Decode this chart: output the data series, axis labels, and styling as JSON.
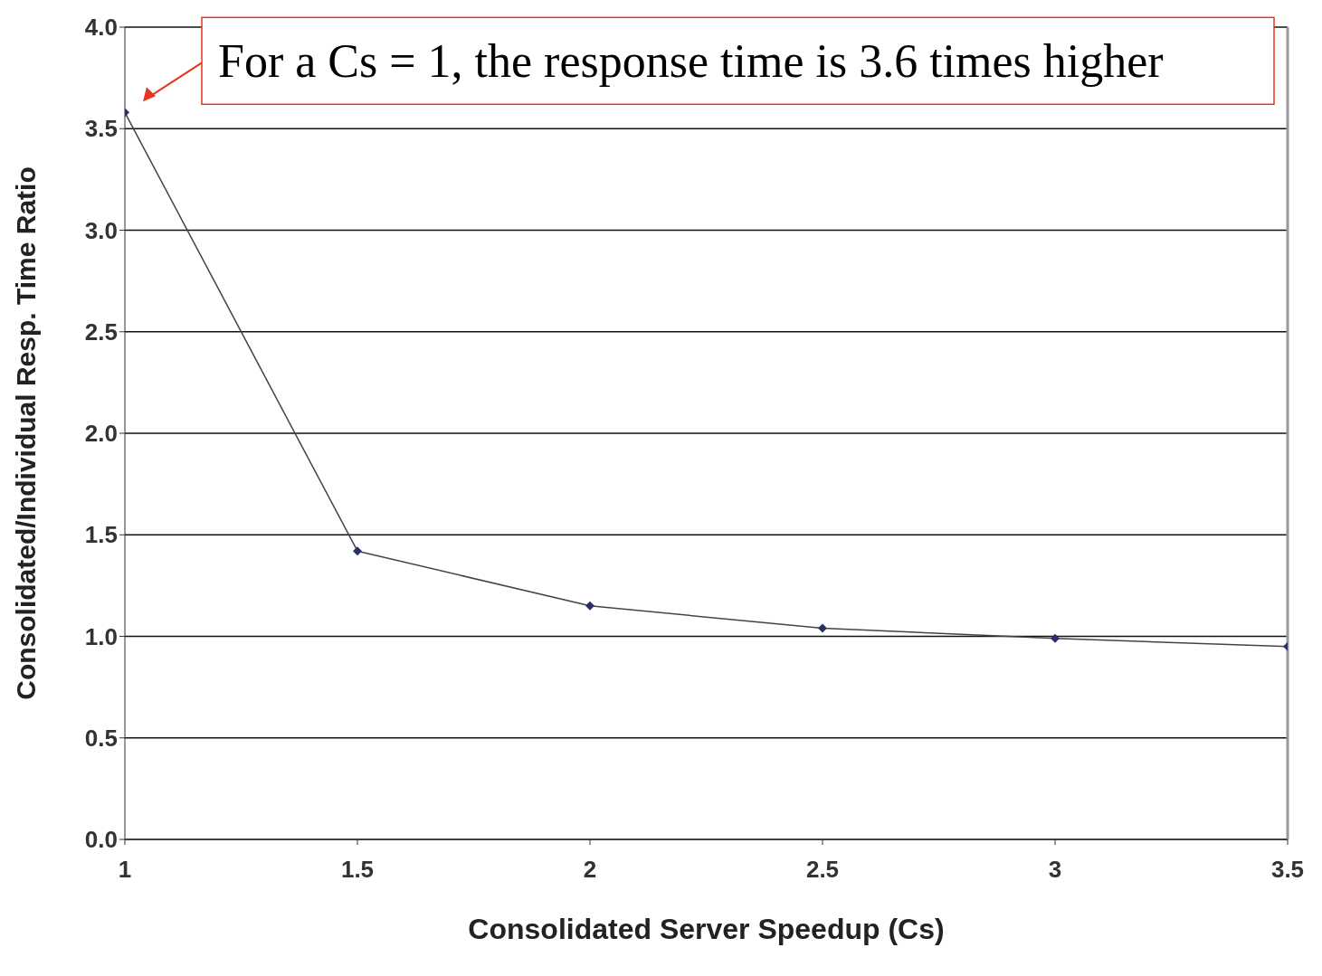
{
  "chart_data": {
    "type": "line",
    "xlabel": "Consolidated Server Speedup (Cs)",
    "ylabel": "Consolidated/Individual Resp. Time Ratio",
    "x": [
      1,
      1.5,
      2,
      2.5,
      3,
      3.5
    ],
    "series": [
      {
        "color": "#2a2f66",
        "values": [
          3.58,
          1.42,
          1.15,
          1.04,
          0.99,
          0.95
        ]
      }
    ],
    "xlim": [
      1,
      3.5
    ],
    "xticks": [
      1,
      1.5,
      2,
      2.5,
      3,
      3.5
    ],
    "ylim": [
      0,
      4
    ],
    "yticks": [
      {
        "value": 0,
        "label": "0.0"
      },
      {
        "value": 0.5,
        "label": "0.5"
      },
      {
        "value": 1,
        "label": "1.0"
      },
      {
        "value": 1.5,
        "label": "1.5"
      },
      {
        "value": 2,
        "label": "2.0"
      },
      {
        "value": 2.5,
        "label": "2.5"
      },
      {
        "value": 3,
        "label": "3.0"
      },
      {
        "value": 3.5,
        "label": "3.5"
      },
      {
        "value": 4,
        "label": "4.0"
      }
    ],
    "grid": "y",
    "marker": "diamond",
    "line_style": "solid",
    "annotations": [
      {
        "text": "For a Cs = 1, the response time is 3.6 times higher",
        "x": 1,
        "y": 3.58
      }
    ]
  }
}
